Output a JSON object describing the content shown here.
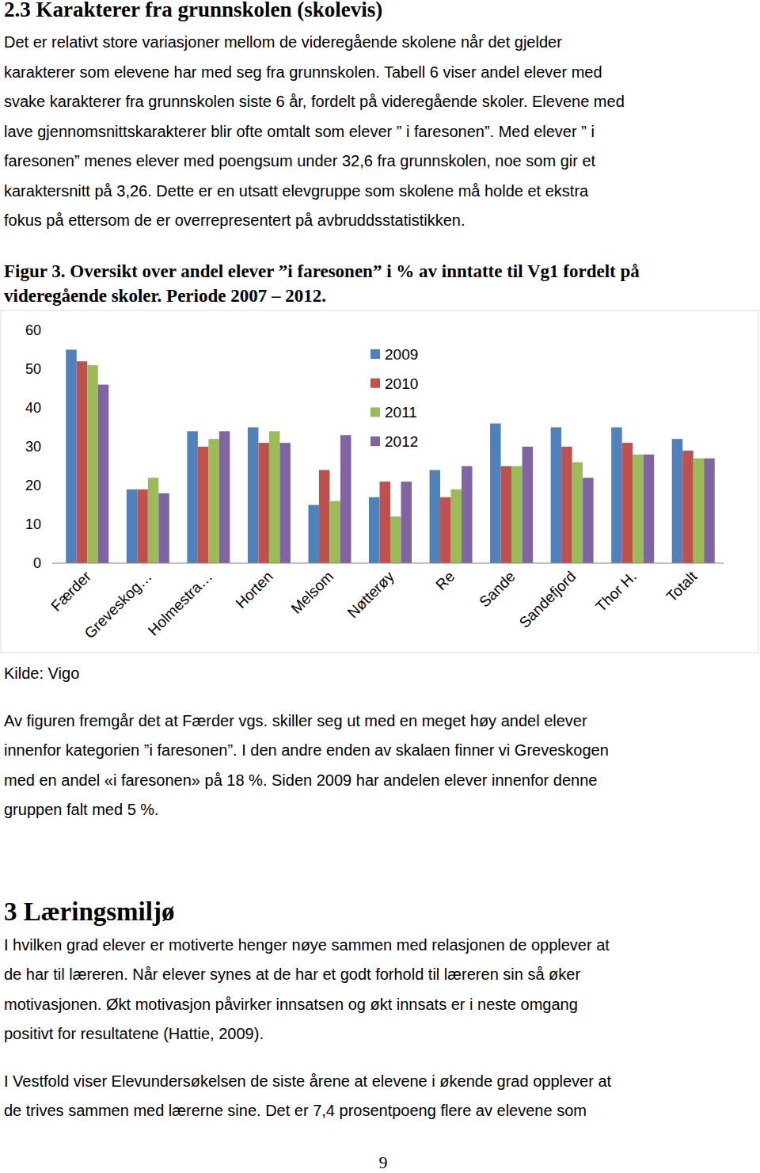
{
  "section": {
    "title": "2.3 Karakterer fra grunnskolen (skolevis)",
    "lines": [
      "Det er relativt store variasjoner mellom de videregående skolene når det gjelder",
      "karakterer som elevene har med seg fra grunnskolen. Tabell 6 viser andel elever med",
      "svake karakterer fra grunnskolen siste 6 år, fordelt på videregående skoler. Elevene med",
      "lave gjennomsnittskarakterer blir ofte omtalt som elever ” i faresonen”. Med elever ” i",
      "faresonen” menes elever med poengsum under 32,6 fra grunnskolen, noe som gir et",
      "karaktersnitt på 3,26. Dette er en utsatt elevgruppe som skolene må holde et ekstra",
      "fokus på ettersom de er overrepresentert på avbruddsstatistikken."
    ]
  },
  "figure": {
    "caption_lines": [
      "Figur 3. Oversikt over andel elever ”i faresonen” i % av inntatte til Vg1 fordelt på",
      "videregående skoler. Periode 2007 – 2012."
    ],
    "source": "Kilde: Vigo"
  },
  "chart_data": {
    "type": "bar",
    "categories": [
      "Færder",
      "Greveskog…",
      "Holmestra…",
      "Horten",
      "Melsom",
      "Nøtterøy",
      "Re",
      "Sande",
      "Sandefjord",
      "Thor H.",
      "Totalt"
    ],
    "series": [
      {
        "name": "2009",
        "color": "#4f81bd",
        "values": [
          55,
          19,
          34,
          35,
          15,
          17,
          24,
          36,
          35,
          35,
          32
        ]
      },
      {
        "name": "2010",
        "color": "#c0504d",
        "values": [
          52,
          19,
          30,
          31,
          24,
          21,
          17,
          25,
          30,
          31,
          29
        ]
      },
      {
        "name": "2011",
        "color": "#9bbb59",
        "values": [
          51,
          22,
          32,
          34,
          16,
          12,
          19,
          25,
          26,
          28,
          27
        ]
      },
      {
        "name": "2012",
        "color": "#8064a2",
        "values": [
          46,
          18,
          34,
          31,
          33,
          21,
          25,
          30,
          22,
          28,
          27
        ]
      }
    ],
    "ylim": [
      0,
      60
    ],
    "yticks": [
      0,
      10,
      20,
      30,
      40,
      50,
      60
    ],
    "grid": false,
    "legend": "top"
  },
  "figure_text": {
    "lines": [
      "Av figuren fremgår det at Færder vgs. skiller seg ut med en meget høy andel elever",
      "innenfor kategorien ”i faresonen”. I den andre enden av skalaen finner vi Greveskogen",
      "med en andel «i faresonen» på 18 %. Siden 2009 har andelen elever innenfor denne",
      "gruppen falt med 5 %."
    ]
  },
  "section_3": {
    "title": "3 Læringsmiljø",
    "paragraphs": [
      [
        "I hvilken grad elever er motiverte henger nøye sammen med relasjonen de opplever at",
        "de har til læreren. Når elever synes at de har et godt forhold til læreren sin så øker",
        "motivasjonen. Økt motivasjon påvirker innsatsen og økt innsats er i neste omgang",
        "positivt for resultatene (Hattie, 2009)."
      ],
      [
        "I Vestfold viser Elevundersøkelsen de siste årene at elevene i økende grad opplever at",
        "de trives sammen med lærerne sine. Det er 7,4 prosentpoeng flere av elevene som"
      ]
    ]
  },
  "page_number": "9"
}
